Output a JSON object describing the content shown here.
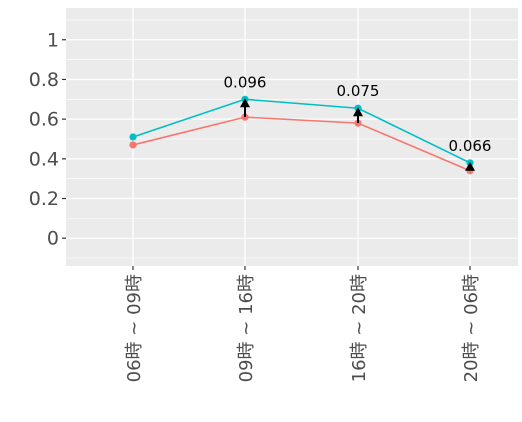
{
  "chart_data": {
    "type": "line",
    "categories": [
      "06時 ~ 09時",
      "09時 ~ 16時",
      "16時 ~ 20時",
      "20時 ~ 06時"
    ],
    "series": [
      {
        "color": "#F8766D",
        "values": [
          0.47,
          0.61,
          0.58,
          0.34
        ]
      },
      {
        "color": "#00BFC4",
        "values": [
          0.51,
          0.7,
          0.655,
          0.38
        ]
      }
    ],
    "annotations": [
      {
        "category": "09時 ~ 16時",
        "text": "0.096"
      },
      {
        "category": "16時 ~ 20時",
        "text": "0.075"
      },
      {
        "category": "20時 ~ 06時",
        "text": "0.066"
      }
    ],
    "y_ticks": [
      {
        "value": 0,
        "label": "0"
      },
      {
        "value": 0.2,
        "label": "0.2"
      },
      {
        "value": 0.4,
        "label": "0.4"
      },
      {
        "value": 0.6,
        "label": "0.6"
      },
      {
        "value": 0.8,
        "label": "0.8"
      },
      {
        "value": 1,
        "label": "1"
      }
    ],
    "ylim": [
      -0.14,
      1.16
    ],
    "grid": true,
    "legend": "none",
    "panel_color": "#EBEBEB",
    "grid_color": "#FFFFFF",
    "arrow_color": "#000000"
  }
}
